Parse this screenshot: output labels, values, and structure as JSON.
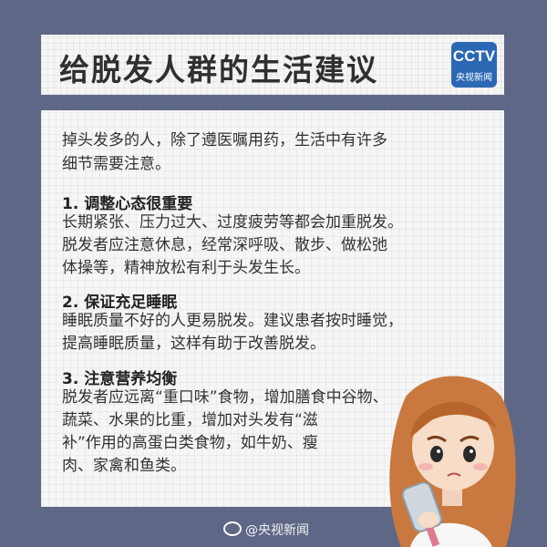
{
  "header": {
    "title": "给脱发人群的生活建议",
    "logo_big": "CCTV",
    "logo_small": "央视新闻"
  },
  "intro": {
    "line1": "掉头发多的人，除了遵医嘱用药，生活中有许多",
    "line2": "细节需要注意。"
  },
  "sections": [
    {
      "heading": "1. 调整心态很重要",
      "lines": [
        "长期紧张、压力过大、过度疲劳等都会加重脱发。",
        "脱发者应注意休息，经常深呼吸、散步、做松弛",
        "体操等，精神放松有利于头发生长。"
      ]
    },
    {
      "heading": "2. 保证充足睡眠",
      "lines": [
        "睡眠质量不好的人更易脱发。建议患者按时睡觉，",
        "提高睡眠质量，这样有助于改善脱发。"
      ]
    },
    {
      "heading": "3. 注意营养均衡",
      "lines": [
        "脱发者应远离“重口味”食物，增加膳食中谷物、",
        "蔬菜、水果的比重，增加对头发有“滋",
        "补”作用的高蛋白类食物，如牛奶、瘦",
        "肉、家禽和鱼类。"
      ]
    }
  ],
  "footer": {
    "text": "@央视新闻"
  },
  "colors": {
    "background": "#5e6785",
    "panel": "#f6f6f7",
    "logo": "#2c69b4"
  }
}
